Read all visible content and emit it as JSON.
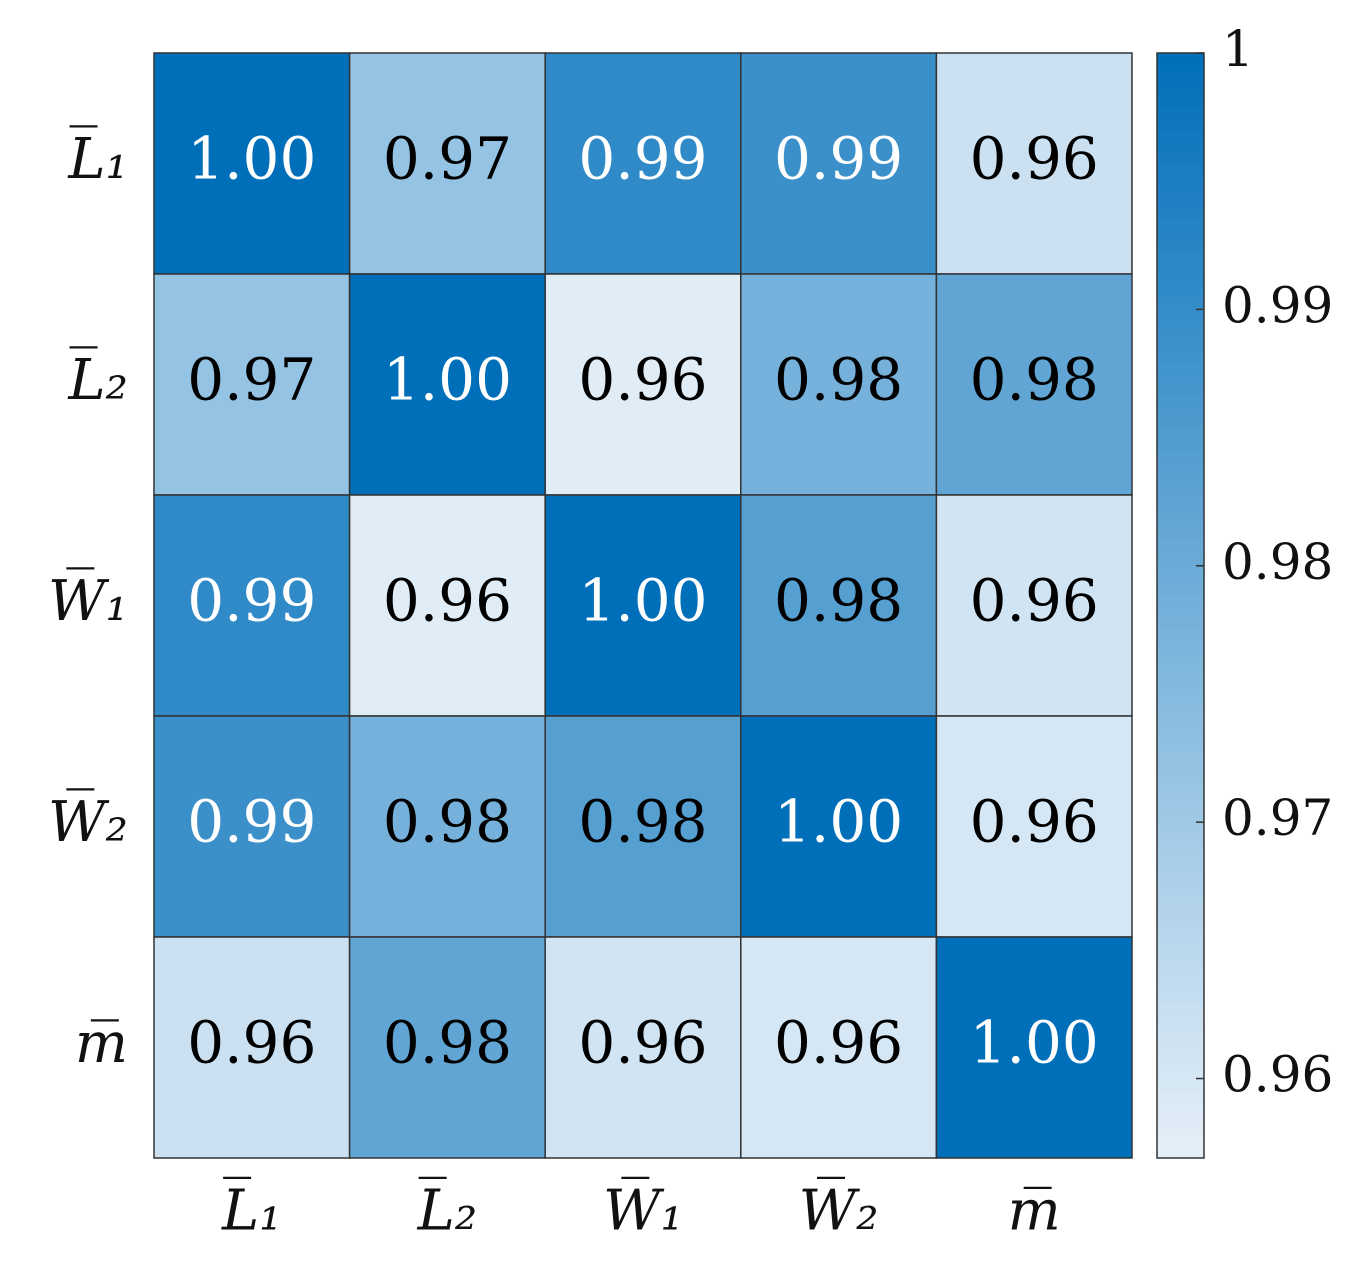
{
  "chart_data": {
    "type": "heatmap",
    "x_categories": [
      "L̅₁",
      "L̅₂",
      "W̅₁",
      "W̅₂",
      "m̅"
    ],
    "y_categories": [
      "L̅₁",
      "L̅₂",
      "W̅₁",
      "W̅₂",
      "m̅"
    ],
    "values": [
      [
        1,
        0.972,
        0.991,
        0.989,
        0.962
      ],
      [
        0.972,
        1,
        0.958,
        0.978,
        0.982
      ],
      [
        0.991,
        0.958,
        1,
        0.984,
        0.961
      ],
      [
        0.989,
        0.978,
        0.984,
        1,
        0.96
      ],
      [
        0.962,
        0.982,
        0.961,
        0.96,
        1
      ]
    ],
    "value_labels": [
      [
        "1.00",
        "0.97",
        "0.99",
        "0.99",
        "0.96"
      ],
      [
        "0.97",
        "1.00",
        "0.96",
        "0.98",
        "0.98"
      ],
      [
        "0.99",
        "0.96",
        "1.00",
        "0.98",
        "0.96"
      ],
      [
        "0.99",
        "0.98",
        "0.98",
        "1.00",
        "0.96"
      ],
      [
        "0.96",
        "0.98",
        "0.96",
        "0.96",
        "1.00"
      ]
    ],
    "colormap": [
      "#e6f0f9",
      "#006fba"
    ],
    "clim": [
      0.9569,
      1
    ],
    "cticks": [
      0.96,
      0.97,
      0.98,
      0.99,
      1
    ]
  }
}
